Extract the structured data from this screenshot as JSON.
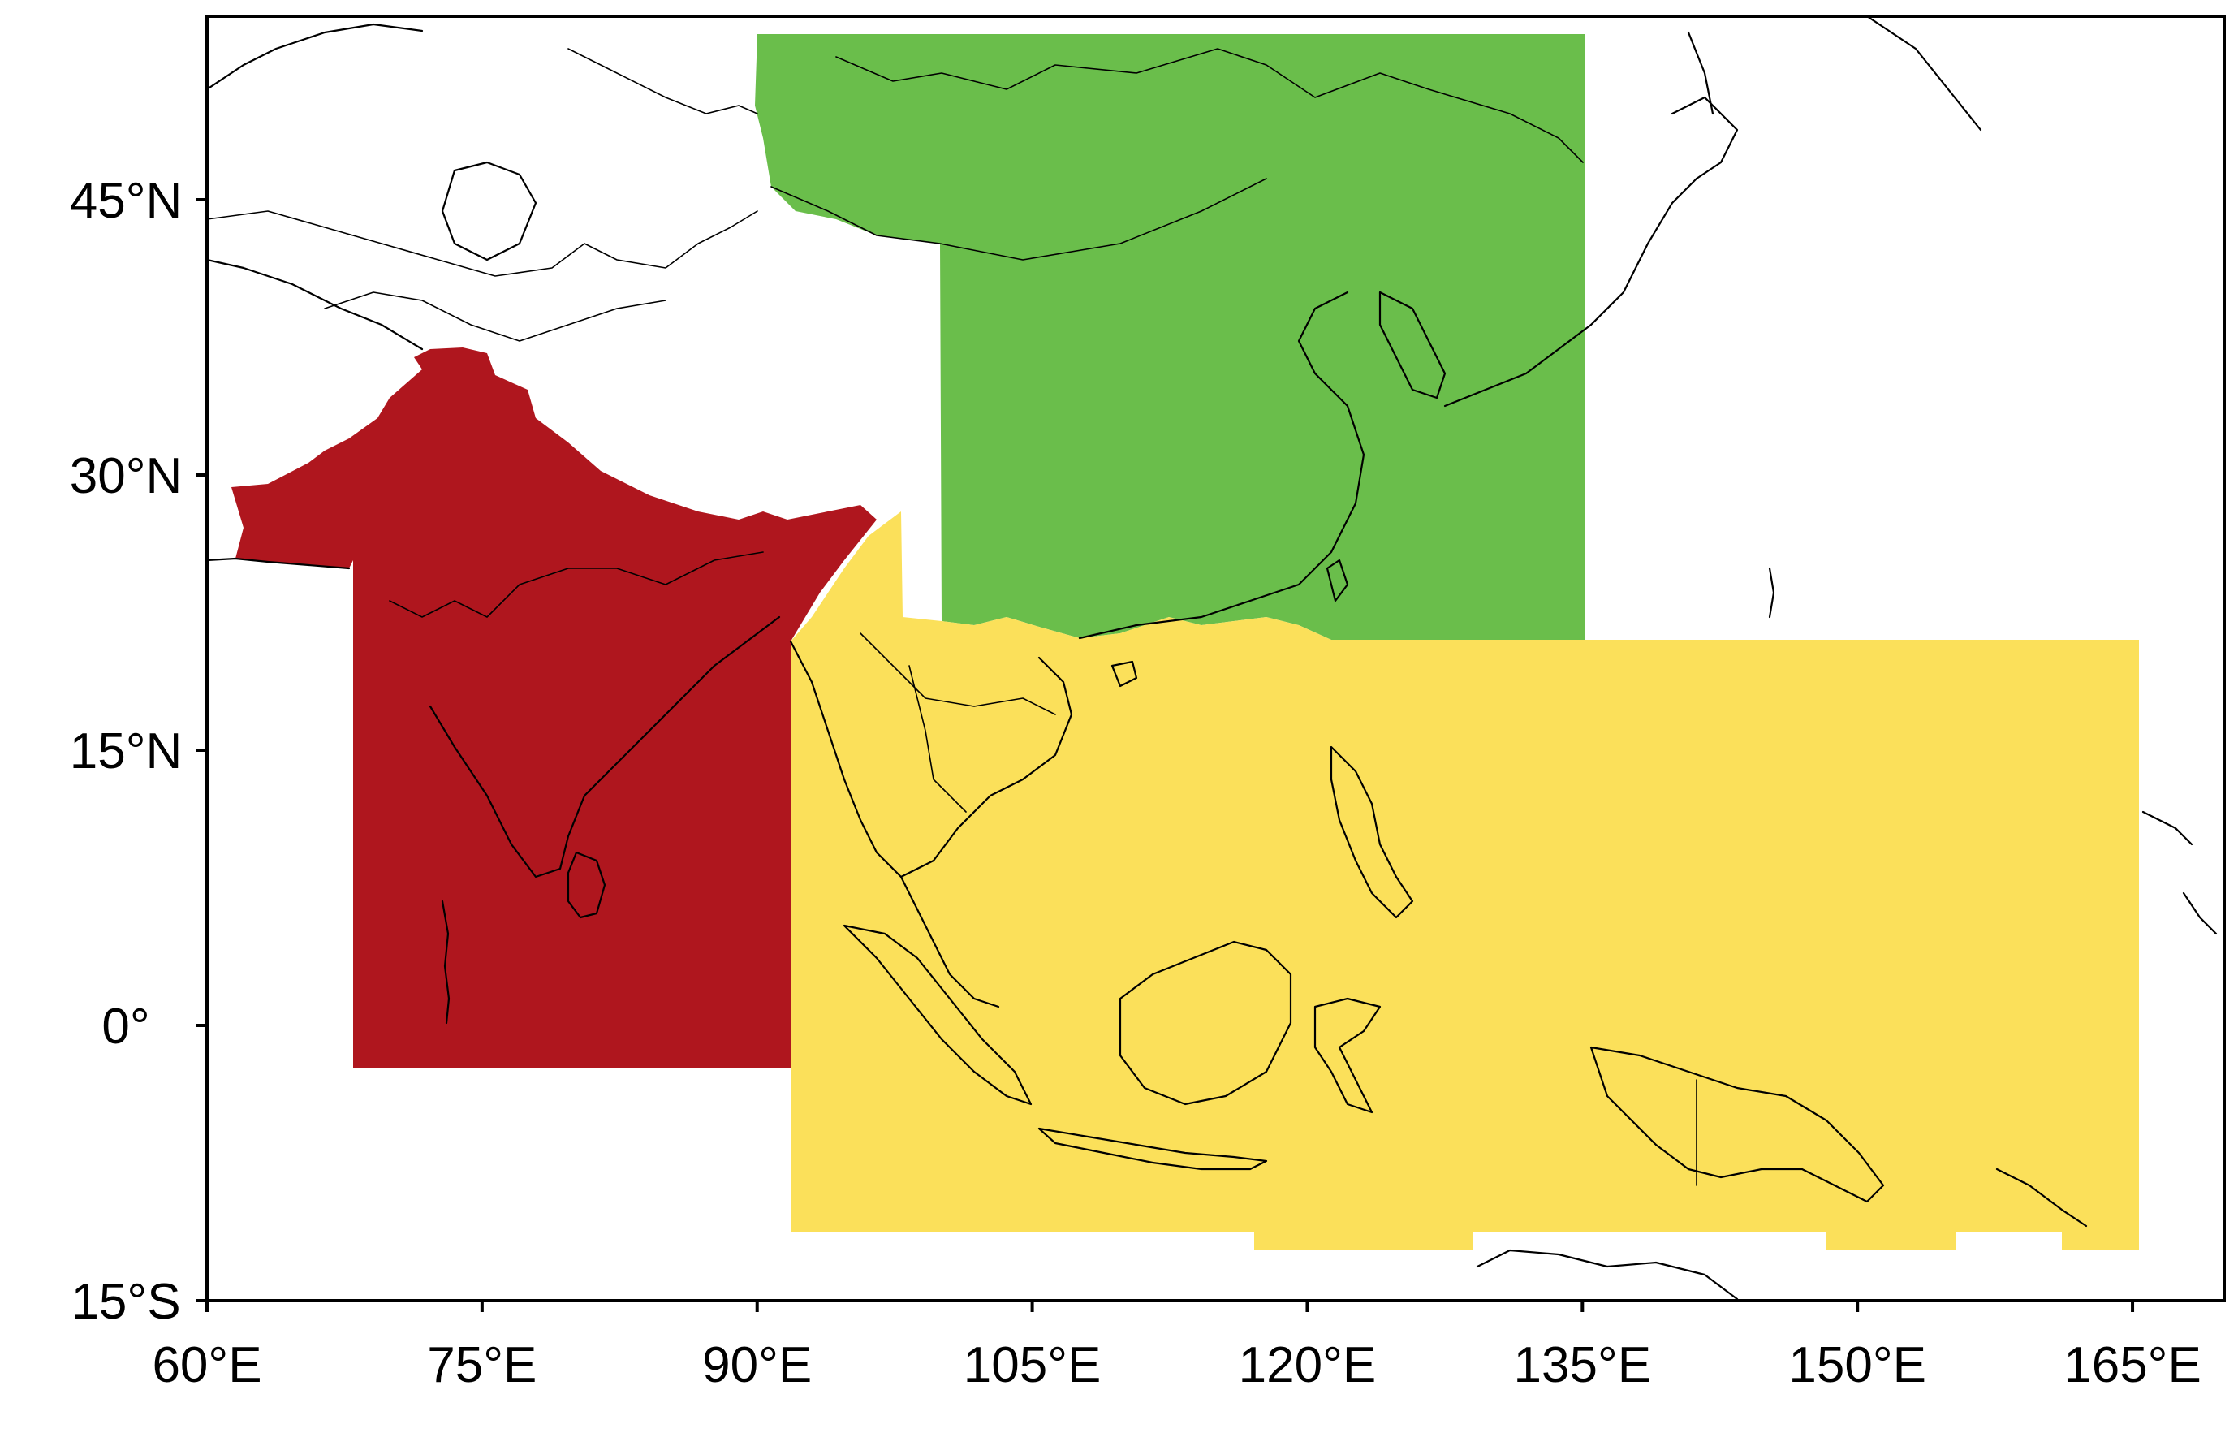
{
  "map": {
    "extent": {
      "lon_min": 60,
      "lon_max": 170,
      "lat_min": -15,
      "lat_max": 55
    },
    "x_ticks": [
      {
        "value": 60,
        "label": "60°E"
      },
      {
        "value": 75,
        "label": "75°E"
      },
      {
        "value": 90,
        "label": "90°E"
      },
      {
        "value": 105,
        "label": "105°E"
      },
      {
        "value": 120,
        "label": "120°E"
      },
      {
        "value": 135,
        "label": "135°E"
      },
      {
        "value": 150,
        "label": "150°E"
      },
      {
        "value": 165,
        "label": "165°E"
      }
    ],
    "y_ticks": [
      {
        "value": 45,
        "label": "45°N"
      },
      {
        "value": 30,
        "label": "30°N"
      },
      {
        "value": 15,
        "label": "15°N"
      },
      {
        "value": 0,
        "label": "0°"
      },
      {
        "value": -15,
        "label": "15°S"
      }
    ],
    "regions": [
      {
        "color": "#af161e",
        "color_name": "red",
        "extent": {
          "lon": [
            68,
            92
          ],
          "lat": [
            -2,
            37
          ]
        },
        "masked_land_only_north_of_lat": 25
      },
      {
        "color": "#6abe4b",
        "color_name": "green",
        "extent": {
          "lon": [
            90,
            135
          ],
          "lat": [
            21,
            54
          ]
        },
        "cutout_west_lon": 100,
        "cutout_below_lat": 42
      },
      {
        "color": "#fbe05a",
        "color_name": "yellow",
        "extent": {
          "lon": [
            92,
            165
          ],
          "lat": [
            -11,
            21
          ]
        },
        "includes_land_east_of_lon": 92
      }
    ],
    "colors": {
      "frame": "#000000",
      "coastline": "#000000",
      "background": "#ffffff"
    }
  }
}
